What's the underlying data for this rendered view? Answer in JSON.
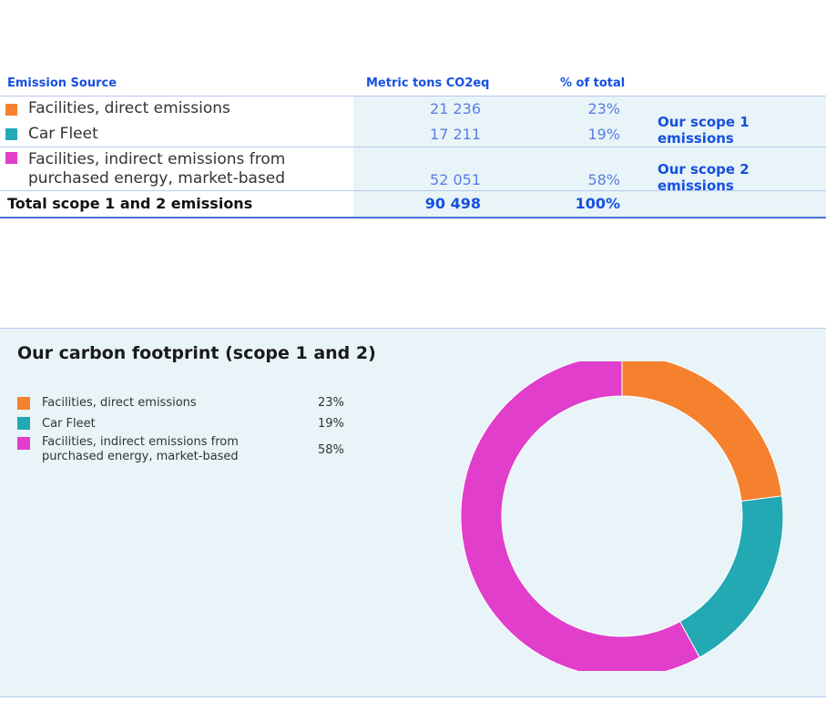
{
  "table": {
    "headers": {
      "source": "Emission Source",
      "metric": "Metric tons CO2eq",
      "percent": "% of total"
    },
    "rows": [
      {
        "label": "Facilities, direct emissions",
        "value": "21 236",
        "percent": "23%",
        "color": "#f5802e"
      },
      {
        "label": "Car Fleet",
        "value": "17 211",
        "percent": "19%",
        "color": "#22a9b4"
      },
      {
        "label_line1": "Facilities, indirect emissions from",
        "label_line2": "purchased energy, market-based",
        "value": "52 051",
        "percent": "58%",
        "color": "#e03ecb"
      }
    ],
    "scope1": "Our scope 1 emissions",
    "scope2": "Our scope 2 emissions",
    "total": {
      "label": "Total scope 1 and 2 emissions",
      "value": "90 498",
      "percent": "100%"
    }
  },
  "chart_data": {
    "type": "pie",
    "title": "Our carbon footprint (scope 1 and 2)",
    "legend_position": "left",
    "slices": [
      {
        "label": "Facilities, direct emissions",
        "percent_label": "23%",
        "value": 23,
        "color": "#f5802e"
      },
      {
        "label": "Car Fleet",
        "percent_label": "19%",
        "value": 19,
        "color": "#22a9b4"
      },
      {
        "label_line1": "Facilities, indirect emissions from",
        "label_line2": "purchased energy, market-based",
        "percent_label": "58%",
        "value": 58,
        "color": "#e03ecb"
      }
    ]
  }
}
